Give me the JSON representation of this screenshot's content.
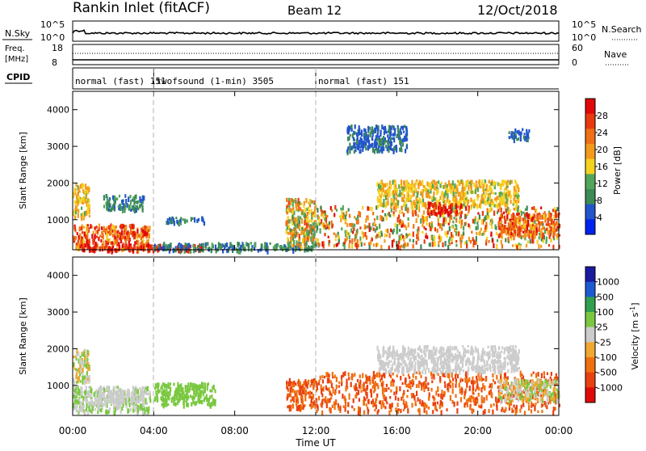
{
  "header": {
    "station": "Rankin Inlet (fitACF)",
    "beam": "Beam 12",
    "date": "12/Oct/2018"
  },
  "nsky_panel": {
    "left_label": "N.Sky",
    "left_ticks": [
      "10^5",
      "10^0"
    ],
    "right_label": "N.Search",
    "right_ticks": [
      "10^5",
      "10^0"
    ]
  },
  "freq_panel": {
    "left_label_1": "Freq.",
    "left_label_2": "[MHz]",
    "left_ticks": [
      "18",
      "8"
    ],
    "right_label": "Nave",
    "right_ticks": [
      "60",
      "0"
    ]
  },
  "cpid_panel": {
    "label": "CPID",
    "segments": [
      {
        "start_h": 0,
        "end_h": 4,
        "text": "normal (fast) 151"
      },
      {
        "start_h": 4,
        "end_h": 12,
        "text": "twofsound (1-min) 3505"
      },
      {
        "start_h": 12,
        "end_h": 24,
        "text": "normal (fast) 151"
      }
    ]
  },
  "colors": {
    "power": [
      "#0022ee",
      "#2255cc",
      "#3d8a55",
      "#52a55a",
      "#f5d21e",
      "#f29a1c",
      "#f07014",
      "#e83a0e",
      "#e0080a"
    ],
    "velocity": [
      "#1a1aa0",
      "#1e5ad2",
      "#30a050",
      "#7ac840",
      "#cccccc",
      "#f0a830",
      "#f07010",
      "#e84010",
      "#e00a0a"
    ]
  },
  "chart_data": [
    {
      "type": "heatmap",
      "title": "Power",
      "ylabel": "Slant Range [km]",
      "xlabel": "Time UT",
      "xlim": [
        0,
        24
      ],
      "ylim": [
        180,
        4500
      ],
      "x_ticks": [
        "00:00",
        "04:00",
        "08:00",
        "12:00",
        "16:00",
        "20:00",
        "00:00"
      ],
      "y_ticks": [
        1000,
        2000,
        3000,
        4000
      ],
      "colorbar": {
        "label": "Power [dB]",
        "ticks": [
          4,
          8,
          12,
          16,
          20,
          24,
          28
        ],
        "range": [
          0,
          30
        ]
      },
      "regions": [
        {
          "t": [
            0,
            0.8
          ],
          "r": [
            1100,
            2000
          ],
          "level": "12-20"
        },
        {
          "t": [
            0,
            3.8
          ],
          "r": [
            200,
            900
          ],
          "level": "16-30"
        },
        {
          "t": [
            1.5,
            3.5
          ],
          "r": [
            1300,
            1700
          ],
          "level": "4-12"
        },
        {
          "t": [
            0.3,
            6.5
          ],
          "r": [
            200,
            350
          ],
          "level": "24-30"
        },
        {
          "t": [
            4,
            12
          ],
          "r": [
            200,
            400
          ],
          "level": "4-12"
        },
        {
          "t": [
            4.5,
            6.5
          ],
          "r": [
            950,
            1100
          ],
          "level": "4-12"
        },
        {
          "t": [
            10.5,
            12
          ],
          "r": [
            300,
            1600
          ],
          "level": "8-24"
        },
        {
          "t": [
            12,
            24
          ],
          "r": [
            300,
            1400
          ],
          "level": "8-28"
        },
        {
          "t": [
            15,
            22
          ],
          "r": [
            1400,
            2100
          ],
          "level": "12-20"
        },
        {
          "t": [
            17.5,
            19.2
          ],
          "r": [
            1200,
            1500
          ],
          "level": "24-30"
        },
        {
          "t": [
            21,
            24
          ],
          "r": [
            600,
            1200
          ],
          "level": "16-28"
        },
        {
          "t": [
            21.5,
            22.5
          ],
          "r": [
            3200,
            3500
          ],
          "level": "4-8"
        },
        {
          "t": [
            13.5,
            16.5
          ],
          "r": [
            2900,
            3600
          ],
          "level": "4-8"
        }
      ]
    },
    {
      "type": "heatmap",
      "title": "Velocity",
      "ylabel": "Slant Range [km]",
      "xlabel": "Time UT",
      "xlim": [
        0,
        24
      ],
      "ylim": [
        180,
        4500
      ],
      "x_ticks": [
        "00:00",
        "04:00",
        "08:00",
        "12:00",
        "16:00",
        "20:00",
        "00:00"
      ],
      "y_ticks": [
        1000,
        2000,
        3000,
        4000
      ],
      "colorbar": {
        "label": "Velocity [m s^-1]",
        "ticks": [
          "1000",
          "500",
          "100",
          "25",
          "-25",
          "-100",
          "-500",
          "-1000"
        ]
      },
      "regions": [
        {
          "t": [
            0,
            0.8
          ],
          "r": [
            1100,
            2000
          ],
          "level": "-100 to 100"
        },
        {
          "t": [
            0,
            3.8
          ],
          "r": [
            300,
            1000
          ],
          "level": "-25 to 100"
        },
        {
          "t": [
            1,
            3.5
          ],
          "r": [
            500,
            900
          ],
          "level": "-25 to 25"
        },
        {
          "t": [
            4,
            7
          ],
          "r": [
            500,
            1100
          ],
          "level": "25 to 100"
        },
        {
          "t": [
            10.5,
            12
          ],
          "r": [
            400,
            1200
          ],
          "level": "-500 to -100"
        },
        {
          "t": [
            12,
            24
          ],
          "r": [
            300,
            1400
          ],
          "level": "-500 to -100"
        },
        {
          "t": [
            15,
            22
          ],
          "r": [
            1400,
            2100
          ],
          "level": "-25 to 25"
        },
        {
          "t": [
            21,
            24
          ],
          "r": [
            600,
            1200
          ],
          "level": "-100 to 100"
        }
      ]
    }
  ],
  "x_axis_title": "Time UT"
}
